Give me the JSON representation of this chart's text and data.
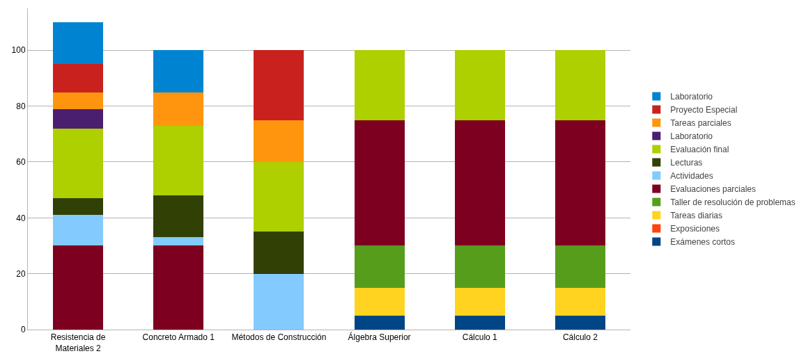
{
  "chart_data": {
    "type": "bar",
    "stacked": true,
    "categories": [
      "Resistencia de Materiales 2",
      "Concreto Armado 1",
      "Métodos de Construcción",
      "Álgebra Superior",
      "Cálculo 1",
      "Cálculo 2"
    ],
    "series": [
      {
        "name": "Exámenes cortos",
        "color": "#004586",
        "values": [
          null,
          null,
          null,
          5,
          5,
          5
        ]
      },
      {
        "name": "Exposiciones",
        "color": "#ff420e",
        "values": [
          null,
          null,
          null,
          null,
          null,
          null
        ]
      },
      {
        "name": "Tareas diarias",
        "color": "#ffd320",
        "values": [
          null,
          null,
          null,
          10,
          10,
          10
        ]
      },
      {
        "name": "Taller de resolución de problemas",
        "color": "#579d1c",
        "values": [
          null,
          null,
          null,
          15,
          15,
          15
        ]
      },
      {
        "name": "Evaluaciones parciales",
        "color": "#7e0021",
        "values": [
          30,
          30,
          null,
          45,
          45,
          45
        ]
      },
      {
        "name": "Actividades",
        "color": "#83caff",
        "values": [
          11,
          3,
          20,
          null,
          null,
          null
        ]
      },
      {
        "name": "Lecturas",
        "color": "#314004",
        "values": [
          6,
          15,
          15,
          null,
          null,
          null
        ]
      },
      {
        "name": "Evaluación final",
        "color": "#aecf00",
        "values": [
          25,
          25,
          25,
          25,
          25,
          25
        ]
      },
      {
        "name": "Laboratorio",
        "color": "#4b1f6f",
        "values": [
          7,
          null,
          null,
          null,
          null,
          null
        ]
      },
      {
        "name": "Tareas parciales",
        "color": "#ff950e",
        "values": [
          6,
          12,
          15,
          null,
          null,
          null
        ]
      },
      {
        "name": "Proyecto Especial",
        "color": "#c9211e",
        "values": [
          10,
          null,
          25,
          null,
          null,
          null
        ]
      },
      {
        "name": "Laboratorio",
        "color": "#0084d1",
        "values": [
          15,
          15,
          null,
          null,
          null,
          null
        ]
      }
    ],
    "ylim": [
      0,
      115
    ],
    "yticks": [
      0,
      20,
      40,
      60,
      80,
      100
    ],
    "grid": "y",
    "legend": "right"
  }
}
